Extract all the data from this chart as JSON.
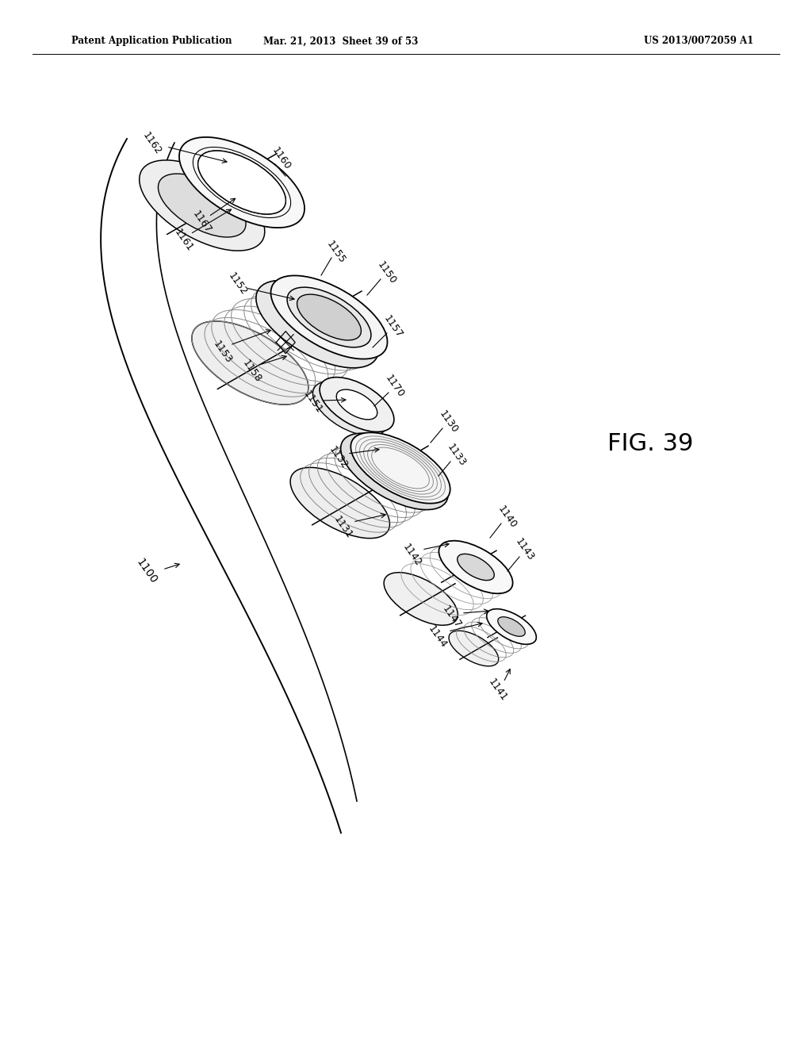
{
  "background_color": "#ffffff",
  "header_left": "Patent Application Publication",
  "header_center": "Mar. 21, 2013  Sheet 39 of 53",
  "header_right": "US 2013/0072059 A1",
  "fig_label": "FIG. 39"
}
